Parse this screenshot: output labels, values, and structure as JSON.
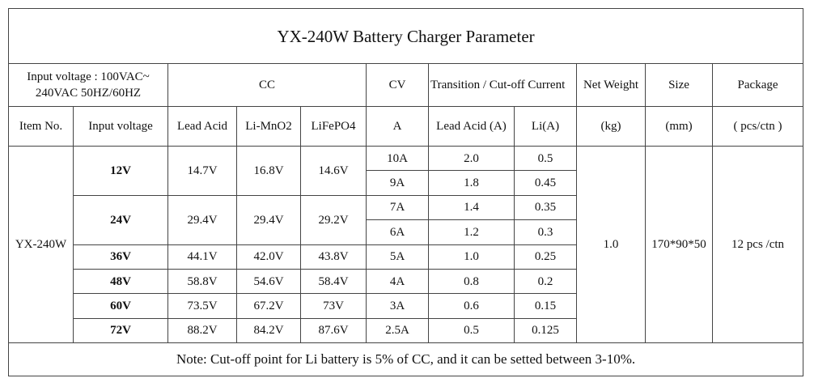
{
  "title": "YX-240W Battery Charger Parameter",
  "header_row1": [
    "Input voltage : 100VAC~ 240VAC 50HZ/60HZ",
    "CC",
    "CV",
    "Transition / Cut-off Current",
    "Net Weight",
    "Size",
    "Package"
  ],
  "header_row2": [
    "Item No.",
    "Input voltage",
    "Lead Acid",
    "Li-MnO2",
    "LiFePO4",
    "A",
    "Lead Acid (A)",
    "Li(A)",
    "(kg)",
    "(mm)",
    "( pcs/ctn )"
  ],
  "item_no": "YX-240W",
  "groups": [
    {
      "voltage": "12V",
      "cc": [
        "14.7V",
        "16.8V",
        "14.6V"
      ],
      "rows": [
        [
          "10A",
          "2.0",
          "0.5"
        ],
        [
          "9A",
          "1.8",
          "0.45"
        ]
      ]
    },
    {
      "voltage": "24V",
      "cc": [
        "29.4V",
        "29.4V",
        "29.2V"
      ],
      "rows": [
        [
          "7A",
          "1.4",
          "0.35"
        ],
        [
          "6A",
          "1.2",
          "0.3"
        ]
      ]
    },
    {
      "voltage": "36V",
      "cc": [
        "44.1V",
        "42.0V",
        "43.8V"
      ],
      "rows": [
        [
          "5A",
          "1.0",
          "0.25"
        ]
      ]
    },
    {
      "voltage": "48V",
      "cc": [
        "58.8V",
        "54.6V",
        "58.4V"
      ],
      "rows": [
        [
          "4A",
          "0.8",
          "0.2"
        ]
      ]
    },
    {
      "voltage": "60V",
      "cc": [
        "73.5V",
        "67.2V",
        "73V"
      ],
      "rows": [
        [
          "3A",
          "0.6",
          "0.15"
        ]
      ]
    },
    {
      "voltage": "72V",
      "cc": [
        "88.2V",
        "84.2V",
        "87.6V"
      ],
      "rows": [
        [
          "2.5A",
          "0.5",
          "0.125"
        ]
      ]
    }
  ],
  "net_weight": "1.0",
  "size": "170*90*50",
  "package": "12 pcs /ctn",
  "note": "Note: Cut-off point for Li battery is 5% of CC, and it can be setted between 3-10%."
}
